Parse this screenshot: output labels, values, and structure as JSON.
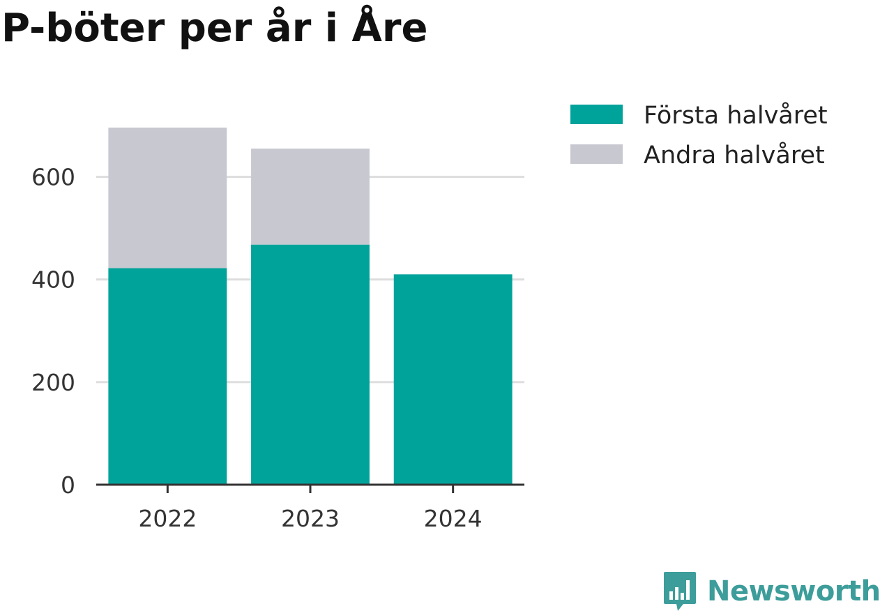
{
  "chart_data": {
    "type": "bar",
    "stacked": true,
    "title": "P-böter per år i Åre",
    "categories": [
      "2022",
      "2023",
      "2024"
    ],
    "series": [
      {
        "name": "Första halvåret",
        "color": "#00a39a",
        "values": [
          422,
          468,
          410
        ]
      },
      {
        "name": "Andra halvåret",
        "color": "#c8c8d0",
        "values": [
          274,
          187,
          0
        ]
      }
    ],
    "ylim": [
      0,
      700
    ],
    "yticks": [
      0,
      200,
      400,
      600
    ],
    "xlabel": "",
    "ylabel": "",
    "grid": true,
    "legend": "top-right"
  },
  "branding": {
    "name": "Newsworthy",
    "icon": "newsworthy-logo-icon",
    "color": "#3c9d9a"
  }
}
